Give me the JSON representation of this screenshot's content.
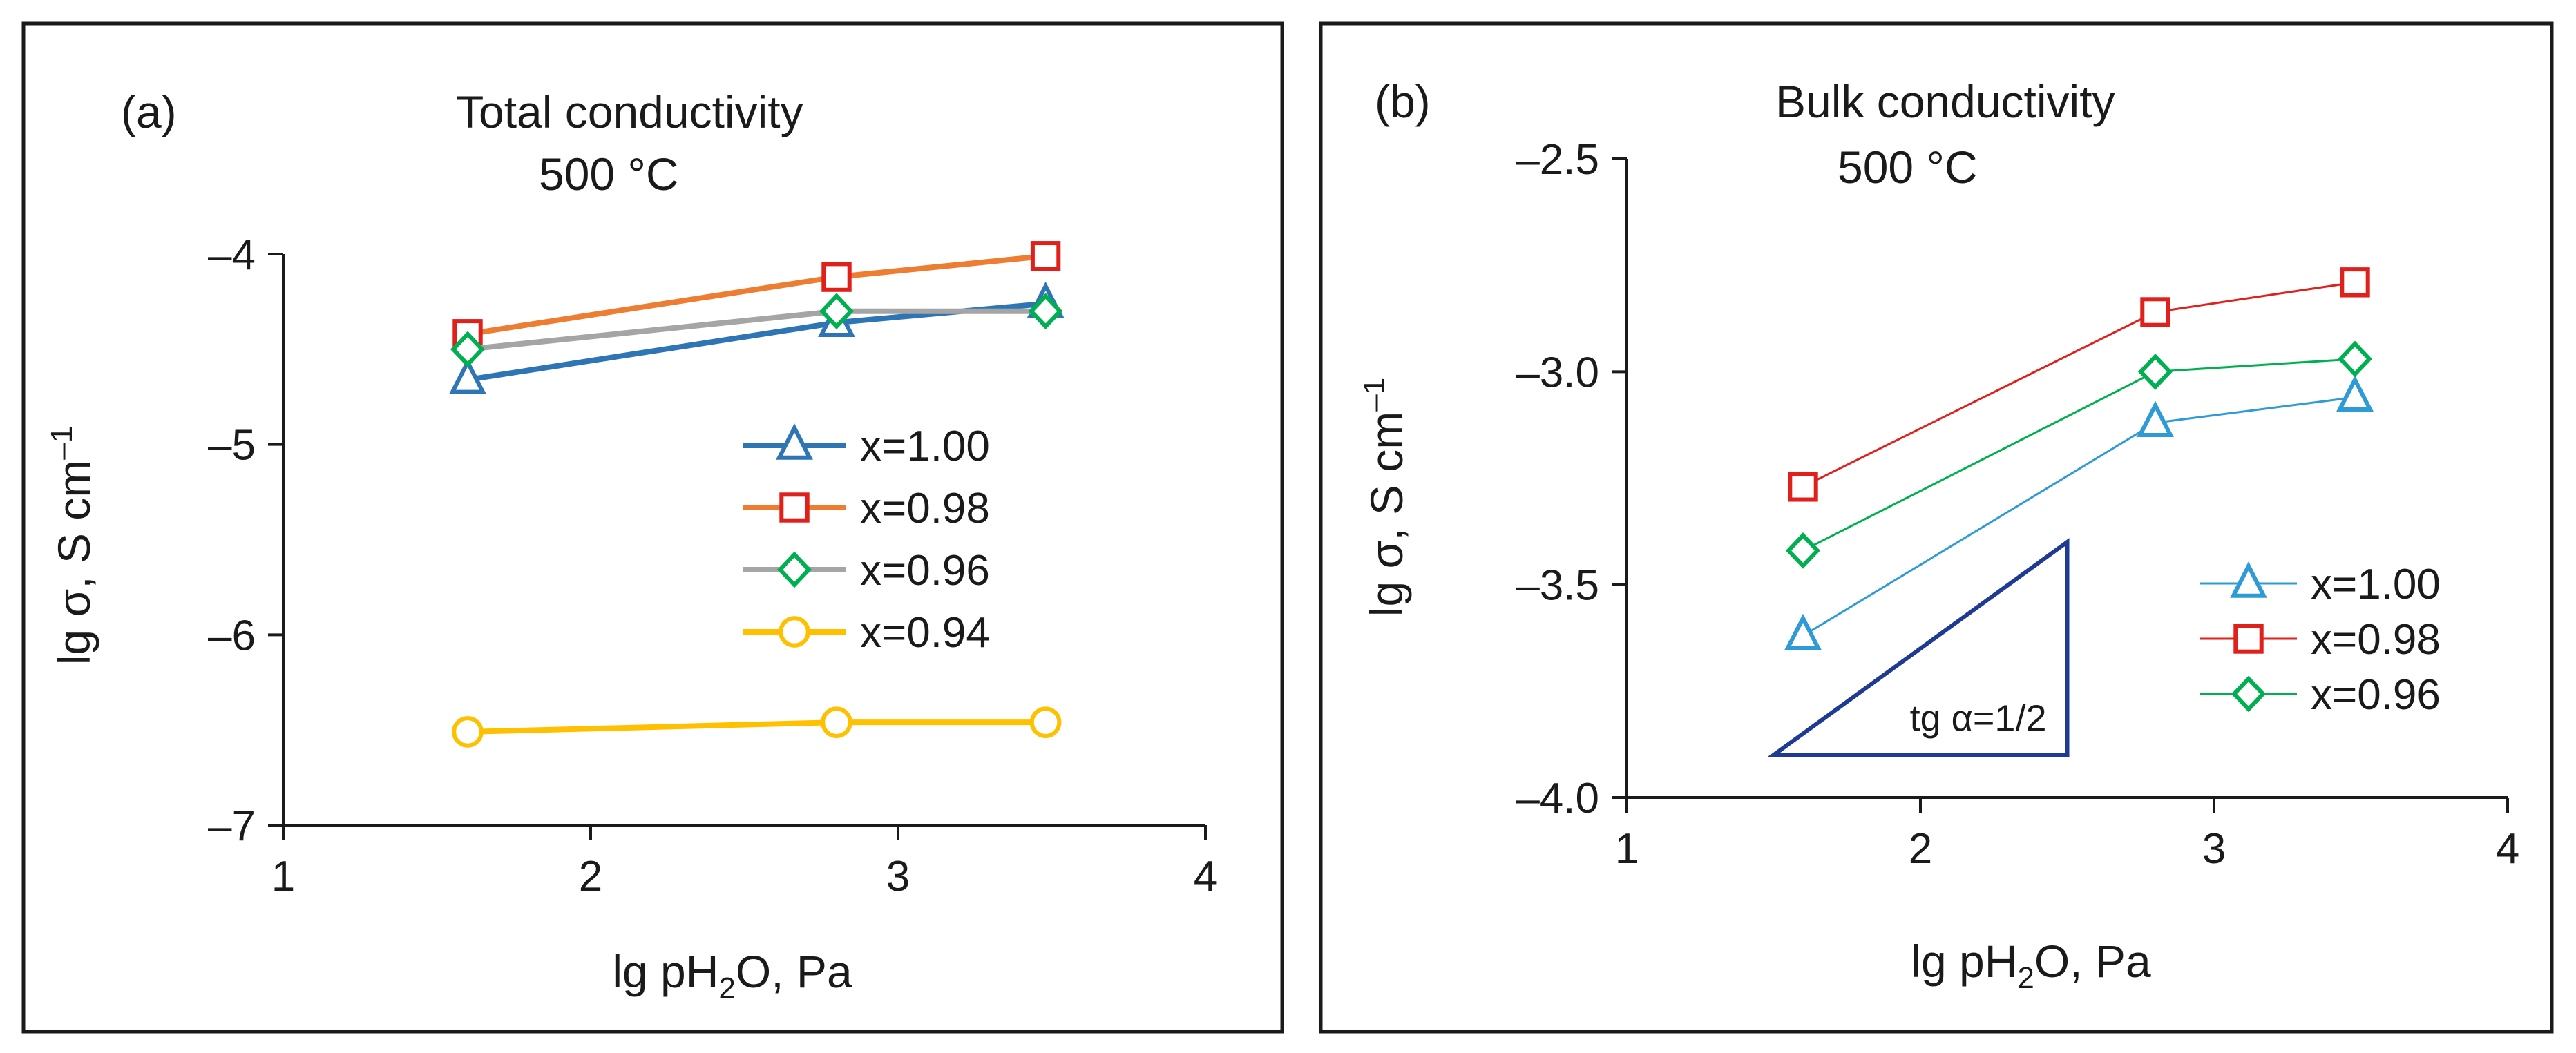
{
  "chart_data": [
    {
      "type": "line",
      "panel_label": "(a)",
      "title": "Total conductivity",
      "subtitle": "500 °C",
      "xlabel": {
        "prefix": "lg pH",
        "sub": "2",
        "suffix": "O, Pa"
      },
      "ylabel": {
        "text": "lg σ, S cm",
        "sup": "–1"
      },
      "xlim": [
        1,
        4
      ],
      "ylim": [
        -7,
        -4
      ],
      "xticks": [
        1,
        2,
        3,
        4
      ],
      "xtick_labels": [
        "1",
        "2",
        "3",
        "4"
      ],
      "yticks": [
        -7,
        -6,
        -5,
        -4
      ],
      "ytick_labels": [
        "–7",
        "–6",
        "–5",
        "–4"
      ],
      "grid": false,
      "legend_position": "right",
      "series": [
        {
          "name": "x=1.00",
          "marker": "triangle",
          "color": "#2E75B6",
          "x": [
            1.6,
            2.8,
            3.48
          ],
          "values": [
            -4.66,
            -4.36,
            -4.26
          ]
        },
        {
          "name": "x=0.98",
          "marker": "square",
          "color": "#ED7D31",
          "marker_color": "#E0201B",
          "x": [
            1.6,
            2.8,
            3.48
          ],
          "values": [
            -4.42,
            -4.12,
            -4.01
          ]
        },
        {
          "name": "x=0.96",
          "marker": "diamond",
          "color": "#A5A5A5",
          "marker_color": "#00B050",
          "x": [
            1.6,
            2.8,
            3.48
          ],
          "values": [
            -4.5,
            -4.3,
            -4.3
          ]
        },
        {
          "name": "x=0.94",
          "marker": "circle",
          "color": "#FFC000",
          "x": [
            1.6,
            2.8,
            3.48
          ],
          "values": [
            -6.51,
            -6.46,
            -6.46
          ]
        }
      ]
    },
    {
      "type": "line",
      "panel_label": "(b)",
      "title": "Bulk conductivity",
      "subtitle": "500 °C",
      "xlabel": {
        "prefix": "lg pH",
        "sub": "2",
        "suffix": "O, Pa"
      },
      "ylabel": {
        "text": "lg σ, S cm",
        "sup": "–1"
      },
      "xlim": [
        1,
        4
      ],
      "ylim": [
        -4.0,
        -2.5
      ],
      "xticks": [
        1,
        2,
        3,
        4
      ],
      "xtick_labels": [
        "1",
        "2",
        "3",
        "4"
      ],
      "yticks": [
        -4.0,
        -3.5,
        -3.0,
        -2.5
      ],
      "ytick_labels": [
        "–4.0",
        "–3.5",
        "–3.0",
        "–2.5"
      ],
      "grid": false,
      "legend_position": "lower-right",
      "annotation": {
        "text": "tg α=1/2",
        "triangle_x": [
          1.5,
          2.5
        ],
        "triangle_y": [
          -3.9,
          -3.4
        ]
      },
      "series": [
        {
          "name": "x=1.00",
          "marker": "triangle",
          "color": "#2E9BD6",
          "x": [
            1.6,
            2.8,
            3.48
          ],
          "values": [
            -3.62,
            -3.12,
            -3.06
          ]
        },
        {
          "name": "x=0.98",
          "marker": "square",
          "color": "#E0201B",
          "x": [
            1.6,
            2.8,
            3.48
          ],
          "values": [
            -3.27,
            -2.86,
            -2.79
          ]
        },
        {
          "name": "x=0.96",
          "marker": "diamond",
          "color": "#00B050",
          "x": [
            1.6,
            2.8,
            3.48
          ],
          "values": [
            -3.42,
            -3.0,
            -2.97
          ]
        }
      ]
    }
  ]
}
